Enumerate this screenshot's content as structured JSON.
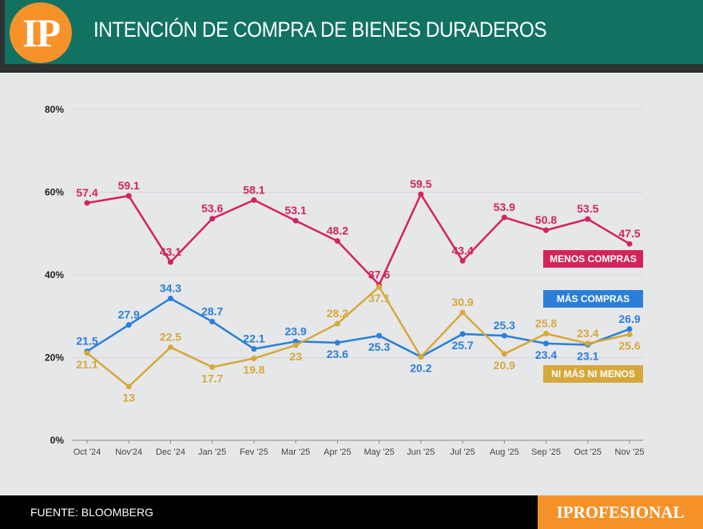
{
  "header": {
    "logo": "IP",
    "title": "INTENCIÓN DE COMPRA DE BIENES DURADEROS"
  },
  "footer": {
    "source": "FUENTE: BLOOMBERG",
    "brand": "IPROFESIONAL"
  },
  "chart_data": {
    "type": "line",
    "title": "INTENCIÓN DE COMPRA DE BIENES DURADEROS",
    "categories": [
      "Oct '24",
      "Nov'24",
      "Dec '24",
      "Jan '25",
      "Fev '25",
      "Mar '25",
      "Apr '25",
      "May '25",
      "Jun '25",
      "Jul '25",
      "Aug '25",
      "Sep '25",
      "Oct '25",
      "Nov '25"
    ],
    "ylim": [
      0,
      80
    ],
    "yticks": [
      "0%",
      "20%",
      "40%",
      "60%",
      "80%"
    ],
    "grid": true,
    "legend": "right",
    "series": [
      {
        "name": "MENOS COMPRAS",
        "color": "#d3245a",
        "values": [
          57.4,
          59.1,
          43.1,
          53.6,
          58.1,
          53.1,
          48.2,
          37.6,
          59.5,
          43.4,
          53.9,
          50.8,
          53.5,
          47.5
        ],
        "labels": [
          "57.4",
          "59.1",
          "43.1",
          "53.6",
          "58.1",
          "53.1",
          "48.2",
          "37.6",
          "59.5",
          "43.4",
          "53.9",
          "50.8",
          "53.5",
          "47.5"
        ]
      },
      {
        "name": "MÁS COMPRAS",
        "color": "#2a7fd8",
        "values": [
          21.5,
          27.9,
          34.3,
          28.7,
          22.1,
          23.9,
          23.6,
          25.3,
          20.2,
          25.7,
          25.3,
          23.4,
          23.1,
          26.9
        ],
        "labels": [
          "21.5",
          "27.9",
          "34.3",
          "28.7",
          "22.1",
          "23.9",
          "23.6",
          "25.3",
          "20.2",
          "25.7",
          "25.3",
          "23.4",
          "23.1",
          "26.9"
        ]
      },
      {
        "name": "NI MÁS NI MENOS",
        "color": "#d6a83c",
        "values": [
          21.1,
          13,
          22.5,
          17.7,
          19.8,
          23,
          28.2,
          37.1,
          20.2,
          30.9,
          20.9,
          25.8,
          23.4,
          25.6
        ],
        "labels": [
          "21.1",
          "13",
          "22.5",
          "17.7",
          "19.8",
          "23",
          "28.2",
          "37.1",
          "",
          "30.9",
          "20.9",
          "25.8",
          "23.4",
          "25.6"
        ]
      }
    ]
  }
}
